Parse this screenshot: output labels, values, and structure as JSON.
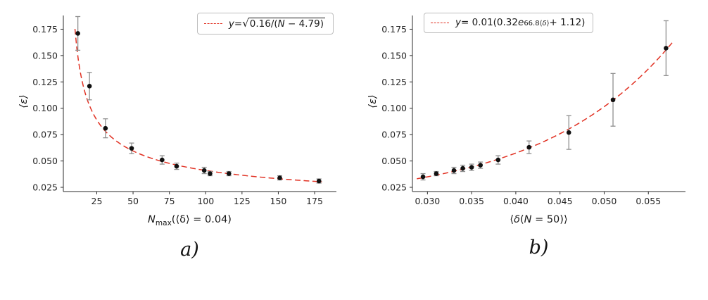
{
  "figure": {
    "sublabels": {
      "a": "a)",
      "b": "b)"
    },
    "background": "#ffffff"
  },
  "colors": {
    "fit_line": "#e13224",
    "marker": "#111111",
    "error_bar": "#8f8f8f",
    "axis": "#2b2b2b",
    "tick_label": "#262626",
    "legend_border": "#bdbdbd"
  },
  "chart_data": [
    {
      "type": "scatter",
      "title": "",
      "ylabel": "⟨ε⟩",
      "xlabel": {
        "base": "N",
        "sub": "max",
        "rest": "(⟨δ⟩ = 0.04)"
      },
      "legend": {
        "full_text": "y = √(0.16/(N − 4.79))",
        "lhs": "y",
        "eq": " = ",
        "sqrt_sign": "√",
        "radicand_pre": "0.16/(",
        "radicand_var": "N",
        "radicand_post": " − 4.79)"
      },
      "fit": {
        "type": "sqrt_inverse",
        "a": 0.16,
        "b": 4.79,
        "range": [
          10,
          180
        ]
      },
      "xlim": [
        2,
        190
      ],
      "ylim": [
        0.021,
        0.188
      ],
      "xticks": [
        25,
        50,
        75,
        100,
        125,
        150,
        175
      ],
      "xtick_labels": [
        "25",
        "50",
        "75",
        "100",
        "125",
        "150",
        "175"
      ],
      "yticks": [
        0.025,
        0.05,
        0.075,
        0.1,
        0.125,
        0.15,
        0.175
      ],
      "ytick_labels": [
        "0.025",
        "0.050",
        "0.075",
        "0.100",
        "0.125",
        "0.150",
        "0.175"
      ],
      "points": [
        {
          "x": 12,
          "y": 0.171,
          "err": 0.016
        },
        {
          "x": 20,
          "y": 0.121,
          "err": 0.013
        },
        {
          "x": 31,
          "y": 0.081,
          "err": 0.009
        },
        {
          "x": 49,
          "y": 0.062,
          "err": 0.005
        },
        {
          "x": 70,
          "y": 0.051,
          "err": 0.004
        },
        {
          "x": 80,
          "y": 0.045,
          "err": 0.003
        },
        {
          "x": 99,
          "y": 0.041,
          "err": 0.003
        },
        {
          "x": 103,
          "y": 0.038,
          "err": 0.002
        },
        {
          "x": 116,
          "y": 0.038,
          "err": 0.002
        },
        {
          "x": 151,
          "y": 0.034,
          "err": 0.002
        },
        {
          "x": 178,
          "y": 0.031,
          "err": 0.002
        }
      ]
    },
    {
      "type": "scatter",
      "title": "",
      "ylabel": "⟨ε⟩",
      "xlabel": {
        "pre": "⟨",
        "var1": "δ",
        "mid": "(",
        "var2": "N",
        "post": " = 50)⟩"
      },
      "legend": {
        "full_text": "y = 0.01(0.32e^(66.8⟨δ⟩) + 1.12)",
        "lhs": "y",
        "eq": " = 0.01(0.32",
        "base_e": "e",
        "sup_pre": "66.8⟨",
        "sup_var": "δ",
        "sup_post": "⟩",
        "tail": " + 1.12)"
      },
      "fit": {
        "type": "exp",
        "scale": 0.01,
        "a": 0.32,
        "k": 66.8,
        "c": 1.12,
        "range": [
          0.0288,
          0.0578
        ]
      },
      "xlim": [
        0.0283,
        0.0592
      ],
      "ylim": [
        0.021,
        0.188
      ],
      "xticks": [
        0.03,
        0.035,
        0.04,
        0.045,
        0.05,
        0.055
      ],
      "xtick_labels": [
        "0.030",
        "0.035",
        "0.040",
        "0.045",
        "0.050",
        "0.055"
      ],
      "yticks": [
        0.025,
        0.05,
        0.075,
        0.1,
        0.125,
        0.15,
        0.175
      ],
      "ytick_labels": [
        "0.025",
        "0.050",
        "0.075",
        "0.100",
        "0.125",
        "0.150",
        "0.175"
      ],
      "points": [
        {
          "x": 0.0295,
          "y": 0.035,
          "err": 0.003
        },
        {
          "x": 0.031,
          "y": 0.038,
          "err": 0.002
        },
        {
          "x": 0.033,
          "y": 0.041,
          "err": 0.003
        },
        {
          "x": 0.034,
          "y": 0.043,
          "err": 0.003
        },
        {
          "x": 0.035,
          "y": 0.044,
          "err": 0.003
        },
        {
          "x": 0.036,
          "y": 0.046,
          "err": 0.003
        },
        {
          "x": 0.038,
          "y": 0.051,
          "err": 0.004
        },
        {
          "x": 0.0415,
          "y": 0.063,
          "err": 0.006
        },
        {
          "x": 0.046,
          "y": 0.077,
          "err": 0.016
        },
        {
          "x": 0.051,
          "y": 0.108,
          "err": 0.025
        },
        {
          "x": 0.057,
          "y": 0.157,
          "err": 0.026
        }
      ]
    }
  ]
}
